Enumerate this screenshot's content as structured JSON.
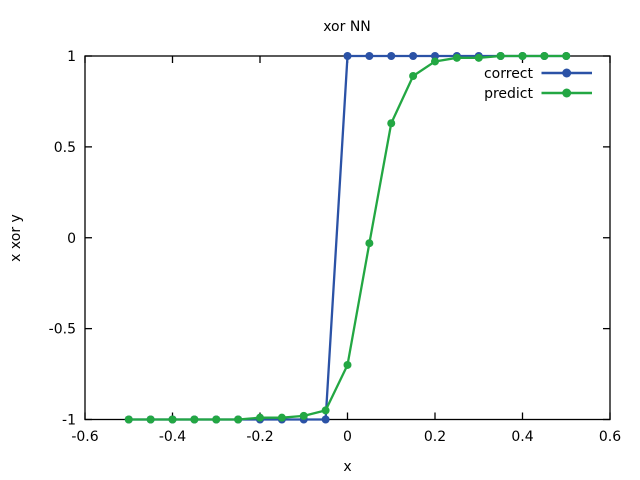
{
  "window": {
    "background_color": "#ffffff",
    "text_color": "#000000"
  },
  "chart_data": {
    "type": "line",
    "title": "xor NN",
    "xlabel": "x",
    "ylabel": "x xor y",
    "xlim": [
      -0.6,
      0.6
    ],
    "ylim": [
      -1,
      1
    ],
    "grid": false,
    "legend": {
      "position": "top-right-inside"
    },
    "x_ticks": {
      "values": [
        -0.6,
        -0.4,
        -0.2,
        0,
        0.2,
        0.4,
        0.6
      ],
      "labels": [
        "-0.6",
        "-0.4",
        "-0.2",
        "0",
        "0.2",
        "0.4",
        "0.6"
      ]
    },
    "y_ticks": {
      "values": [
        1,
        0.5,
        0,
        -0.5,
        -1
      ],
      "labels": [
        "1",
        "0.5",
        "0",
        "-0.5",
        "-1"
      ]
    },
    "x": [
      -0.5,
      -0.45,
      -0.4,
      -0.35,
      -0.3,
      -0.25,
      -0.2,
      -0.15,
      -0.1,
      -0.05,
      0,
      0.05,
      0.1,
      0.15,
      0.2,
      0.25,
      0.3,
      0.35,
      0.4,
      0.45,
      0.5
    ],
    "series": [
      {
        "name": "correct",
        "color": "#2b52a6",
        "marker": "circle",
        "values": [
          -1,
          -1,
          -1,
          -1,
          -1,
          -1,
          -1,
          -1,
          -1,
          -1,
          1,
          1,
          1,
          1,
          1,
          1,
          1,
          1,
          1,
          1,
          1
        ]
      },
      {
        "name": "predict",
        "color": "#23a743",
        "marker": "circle",
        "values": [
          -1,
          -1,
          -1,
          -1,
          -1,
          -1,
          -0.99,
          -0.99,
          -0.98,
          -0.95,
          -0.7,
          -0.03,
          0.63,
          0.89,
          0.97,
          0.99,
          0.99,
          1,
          1,
          1,
          1
        ]
      }
    ]
  }
}
